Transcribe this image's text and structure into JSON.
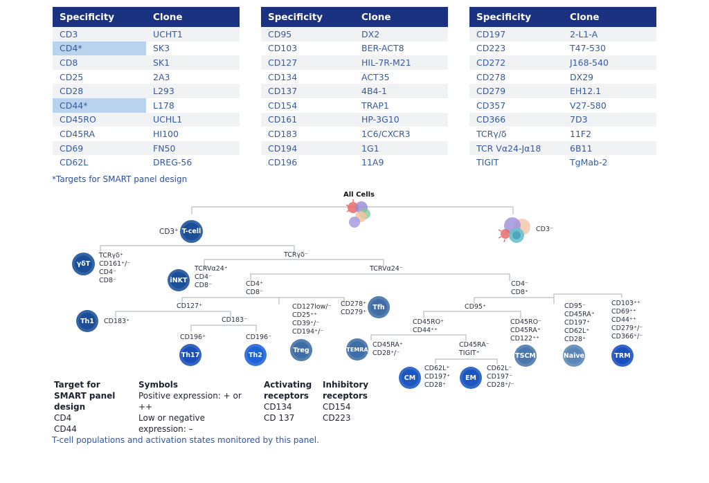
{
  "tables": [
    {
      "headers": [
        "Specificity",
        "Clone"
      ],
      "rows": [
        {
          "spec": "CD3",
          "clone": "UCHT1",
          "highlight": false
        },
        {
          "spec": "CD4*",
          "clone": "SK3",
          "highlight": true
        },
        {
          "spec": "CD8",
          "clone": "SK1",
          "highlight": false
        },
        {
          "spec": "CD25",
          "clone": "2A3",
          "highlight": false
        },
        {
          "spec": "CD28",
          "clone": "L293",
          "highlight": false
        },
        {
          "spec": "CD44*",
          "clone": "L178",
          "highlight": true
        },
        {
          "spec": "CD45RO",
          "clone": "UCHL1",
          "highlight": false
        },
        {
          "spec": "CD45RA",
          "clone": "HI100",
          "highlight": false
        },
        {
          "spec": "CD69",
          "clone": "FN50",
          "highlight": false
        },
        {
          "spec": "CD62L",
          "clone": "DREG-56",
          "highlight": false
        }
      ]
    },
    {
      "headers": [
        "Specificity",
        "Clone"
      ],
      "rows": [
        {
          "spec": "CD95",
          "clone": "DX2",
          "highlight": false
        },
        {
          "spec": "CD103",
          "clone": "BER-ACT8",
          "highlight": false
        },
        {
          "spec": "CD127",
          "clone": "HIL-7R-M21",
          "highlight": false
        },
        {
          "spec": "CD134",
          "clone": "ACT35",
          "highlight": false
        },
        {
          "spec": "CD137",
          "clone": "4B4-1",
          "highlight": false
        },
        {
          "spec": "CD154",
          "clone": "TRAP1",
          "highlight": false
        },
        {
          "spec": "CD161",
          "clone": "HP-3G10",
          "highlight": false
        },
        {
          "spec": "CD183",
          "clone": "1C6/CXCR3",
          "highlight": false
        },
        {
          "spec": "CD194",
          "clone": "1G1",
          "highlight": false
        },
        {
          "spec": "CD196",
          "clone": "11A9",
          "highlight": false
        }
      ]
    },
    {
      "headers": [
        "Specificity",
        "Clone"
      ],
      "rows": [
        {
          "spec": "CD197",
          "clone": "2-L1-A",
          "highlight": false
        },
        {
          "spec": "CD223",
          "clone": "T47-530",
          "highlight": false
        },
        {
          "spec": "CD272",
          "clone": "J168-540",
          "highlight": false
        },
        {
          "spec": "CD278",
          "clone": "DX29",
          "highlight": false
        },
        {
          "spec": "CD279",
          "clone": "EH12.1",
          "highlight": false
        },
        {
          "spec": "CD357",
          "clone": "V27-580",
          "highlight": false
        },
        {
          "spec": "CD366",
          "clone": "7D3",
          "highlight": false
        },
        {
          "spec": "TCRγ/δ",
          "clone": "11F2",
          "highlight": false
        },
        {
          "spec": "TCR Vα24-Jα18",
          "clone": "6B11",
          "highlight": false
        },
        {
          "spec": "TIGIT",
          "clone": "TgMab-2",
          "highlight": false
        }
      ]
    }
  ],
  "footnote": "*Targets for SMART panel design",
  "tree": {
    "root_label": "All Cells",
    "non_t_label": "CD3⁻",
    "tcell_marker": "CD3⁺",
    "branch_labels": {
      "tcrgd_neg": "TCRγδ⁻",
      "tcrva24_neg": "TCRVα24⁻",
      "cd4_branch": "CD4⁺\nCD8⁻",
      "cd8_branch": "CD4⁻\nCD8⁺",
      "cd127": "CD127⁺",
      "cd183_neg": "CD183⁻",
      "cd95": "CD95⁺",
      "cd45ro": "CD45RO⁺\nCD44⁺⁺",
      "cd45ra_neg": "CD45RA⁻\nTIGIT⁺",
      "th17_marker": "CD196⁺",
      "th2_marker": "CD196⁻"
    },
    "nodes": [
      {
        "name": "T-cell",
        "color": "#1a4f98"
      },
      {
        "name": "γδT",
        "color": "#1a4f98",
        "markers": "TCRγδ⁺\nCD161⁺/⁻\nCD4⁻\nCD8⁻"
      },
      {
        "name": "iNKT",
        "color": "#1a4f98",
        "markers": "TCRVα24⁺\nCD4⁻\nCD8⁻"
      },
      {
        "name": "Th1",
        "color": "#1a4f98",
        "markers": "CD183⁺"
      },
      {
        "name": "Th17",
        "color": "#1b4fb8"
      },
      {
        "name": "Th2",
        "color": "#1e63d6"
      },
      {
        "name": "Treg",
        "color": "#3f6ea6",
        "markers": "CD127low/⁻\nCD25⁺⁺\nCD39⁺/⁻\nCD194⁺/⁻"
      },
      {
        "name": "Tfh",
        "color": "#3f6ea6",
        "markers": "CD278⁺\nCD279⁺"
      },
      {
        "name": "TEMRA",
        "color": "#3f6ea6",
        "markers": "CD45RA⁺\nCD28⁺/⁻"
      },
      {
        "name": "CM",
        "color": "#1a55c0",
        "markers": "CD62L⁺\nCD197⁺\nCD28⁺"
      },
      {
        "name": "EM",
        "color": "#1a55c0",
        "markers": "CD62L⁻\nCD197⁻\nCD28⁺/⁻"
      },
      {
        "name": "TSCM",
        "color": "#4a78ad",
        "markers": "CD45RO⁻\nCD45RA⁺\nCD122⁺⁺"
      },
      {
        "name": "Naive",
        "color": "#5a86b8",
        "markers": "CD95⁻\nCD45RA⁺\nCD197⁺\nCD62L⁺\nCD28⁺"
      },
      {
        "name": "TRM",
        "color": "#1a4fc0",
        "markers": "CD103⁺⁺\nCD69⁺⁺\nCD44⁺⁺\nCD279⁺/⁻\nCD366⁺/⁻"
      }
    ]
  },
  "legend": {
    "target": {
      "title": "Target for SMART panel design",
      "items": [
        "CD4",
        "CD44"
      ]
    },
    "symbols": {
      "title": "Symbols",
      "items": [
        "Positive expression: + or ++",
        "Low or negative",
        "expression: –"
      ]
    },
    "activating": {
      "title": "Activating receptors",
      "items": [
        "CD134",
        "CD 137"
      ]
    },
    "inhibitory": {
      "title": "Inhibitory receptors",
      "items": [
        "CD154",
        "CD223"
      ]
    }
  },
  "caption": "T-cell populations and activation states monitored by this panel."
}
